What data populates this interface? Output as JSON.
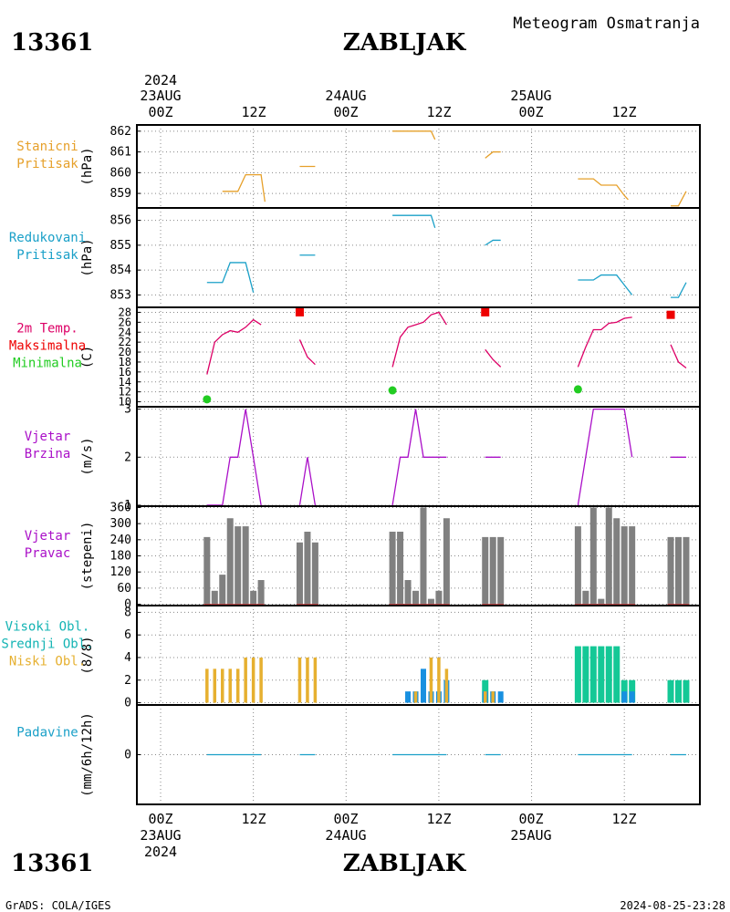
{
  "header": {
    "station_id": "13361",
    "station_name": "ZABLJAK",
    "subtitle": "Meteogram Osmatranja"
  },
  "footer": {
    "credit": "GrADS: COLA/IGES",
    "timestamp": "2024-08-25-23:28"
  },
  "axis": {
    "top_year": "2024",
    "time_ticks": [
      "00Z",
      "12Z",
      "00Z",
      "12Z",
      "00Z",
      "12Z"
    ],
    "date_ticks": [
      "23AUG",
      "24AUG",
      "25AUG"
    ],
    "bottom_year": "2024"
  },
  "colors": {
    "station_pressure": "#e6a02a",
    "reduced_pressure": "#1aa0c8",
    "tmax": "#dd0066",
    "tmax_marker": "#ee0000",
    "tmin_marker": "#22cc22",
    "wind_speed": "#aa10c8",
    "wind_dir_bar": "#808080",
    "wind_dir_base": "#cc3333",
    "cloud_high": "#14c896",
    "cloud_mid": "#1890e0",
    "cloud_low": "#e6b030",
    "precip": "#1aa0c8",
    "label_teal": "#14b4b4"
  },
  "chart_data": [
    {
      "type": "line",
      "panel": "station_pressure",
      "label_lines": [
        "Stanicni",
        "Pritisak"
      ],
      "ylabel": "(hPa)",
      "yticks": [
        862,
        861,
        860,
        859
      ],
      "ylim": [
        858.3,
        862.3
      ],
      "x_unit": "hours since 2024-08-23 00Z",
      "segments": [
        [
          [
            8,
            859.1
          ],
          [
            10,
            859.1
          ],
          [
            11,
            859.9
          ],
          [
            12,
            859.9
          ],
          [
            13,
            859.9
          ],
          [
            13.5,
            858.6
          ]
        ],
        [
          [
            18,
            860.3
          ],
          [
            20,
            860.3
          ]
        ],
        [
          [
            30,
            862
          ],
          [
            34,
            862
          ],
          [
            35,
            862
          ],
          [
            35.5,
            861.6
          ]
        ],
        [
          [
            42,
            860.7
          ],
          [
            43,
            861
          ],
          [
            44,
            861
          ]
        ],
        [
          [
            54,
            859.7
          ],
          [
            56,
            859.7
          ],
          [
            57,
            859.4
          ],
          [
            59,
            859.4
          ],
          [
            60,
            858.9
          ],
          [
            60.5,
            858.7
          ]
        ],
        [
          [
            66,
            858.4
          ],
          [
            67,
            858.4
          ],
          [
            68,
            859.1
          ]
        ]
      ]
    },
    {
      "type": "line",
      "panel": "reduced_pressure",
      "label_lines": [
        "Redukovani",
        "Pritisak"
      ],
      "ylabel": "(hPa)",
      "yticks": [
        856,
        855,
        854,
        853
      ],
      "ylim": [
        852.5,
        856.5
      ],
      "segments": [
        [
          [
            6,
            853.5
          ],
          [
            8,
            853.5
          ],
          [
            9,
            854.3
          ],
          [
            10,
            854.3
          ],
          [
            11,
            854.3
          ],
          [
            12,
            853.1
          ]
        ],
        [
          [
            18,
            854.6
          ],
          [
            20,
            854.6
          ]
        ],
        [
          [
            30,
            856.2
          ],
          [
            34,
            856.2
          ],
          [
            35,
            856.2
          ],
          [
            35.5,
            855.7
          ]
        ],
        [
          [
            42,
            855
          ],
          [
            43,
            855.2
          ],
          [
            44,
            855.2
          ]
        ],
        [
          [
            54,
            853.6
          ],
          [
            56,
            853.6
          ],
          [
            57,
            853.8
          ],
          [
            59,
            853.8
          ],
          [
            60,
            853.4
          ],
          [
            61,
            853
          ]
        ],
        [
          [
            66,
            852.9
          ],
          [
            67,
            852.9
          ],
          [
            68,
            853.5
          ]
        ]
      ]
    },
    {
      "type": "line",
      "panel": "temperature",
      "label_lines": [
        "2m Temp.",
        "Maksimalna",
        "Minimalna"
      ],
      "ylabel": "(C)",
      "yticks": [
        28,
        26,
        24,
        22,
        20,
        18,
        16,
        14,
        12,
        10
      ],
      "ylim": [
        9,
        29
      ],
      "segments": [
        [
          [
            6,
            15.5
          ],
          [
            7,
            22
          ],
          [
            8,
            23.5
          ],
          [
            9,
            24.3
          ],
          [
            10,
            24
          ],
          [
            11,
            25
          ],
          [
            12,
            26.5
          ],
          [
            13,
            25.5
          ]
        ],
        [
          [
            18,
            22.5
          ],
          [
            19,
            19
          ],
          [
            20,
            17.5
          ]
        ],
        [
          [
            30,
            17
          ],
          [
            31,
            23
          ],
          [
            32,
            25
          ],
          [
            33,
            25.5
          ],
          [
            34,
            26
          ],
          [
            35,
            27.5
          ],
          [
            36,
            28
          ],
          [
            37,
            25.5
          ]
        ],
        [
          [
            42,
            20.5
          ],
          [
            43,
            18.5
          ],
          [
            44,
            17
          ]
        ],
        [
          [
            54,
            17
          ],
          [
            55,
            21
          ],
          [
            56,
            24.5
          ],
          [
            57,
            24.5
          ],
          [
            58,
            25.8
          ],
          [
            59,
            26
          ],
          [
            60,
            26.8
          ],
          [
            61,
            27
          ]
        ],
        [
          [
            66,
            21.5
          ],
          [
            67,
            18
          ],
          [
            68,
            16.8
          ]
        ]
      ],
      "max_points": [
        [
          18,
          28
        ],
        [
          42,
          28
        ],
        [
          66,
          27.5
        ]
      ],
      "min_points": [
        [
          6,
          10.5
        ],
        [
          30,
          12.3
        ],
        [
          54,
          12.5
        ]
      ]
    },
    {
      "type": "line",
      "panel": "wind_speed",
      "label_lines": [
        "Vjetar",
        "Brzina"
      ],
      "ylabel": "(m/s)",
      "yticks": [
        3,
        2,
        1
      ],
      "ylim": [
        0.98,
        3.05
      ],
      "segments": [
        [
          [
            6,
            1
          ],
          [
            7,
            1
          ],
          [
            8,
            1
          ],
          [
            9,
            2
          ],
          [
            10,
            2
          ],
          [
            11,
            3
          ],
          [
            12,
            2
          ],
          [
            13,
            1
          ]
        ],
        [
          [
            18,
            1
          ],
          [
            19,
            2
          ],
          [
            20,
            1
          ]
        ],
        [
          [
            30,
            1
          ],
          [
            31,
            2
          ],
          [
            32,
            2
          ],
          [
            33,
            3
          ],
          [
            34,
            2
          ],
          [
            35,
            2
          ],
          [
            36,
            2
          ],
          [
            37,
            2
          ]
        ],
        [
          [
            42,
            2
          ],
          [
            43,
            2
          ],
          [
            44,
            2
          ]
        ],
        [
          [
            54,
            1
          ],
          [
            55,
            2
          ],
          [
            56,
            3
          ],
          [
            57,
            3
          ],
          [
            58,
            3
          ],
          [
            59,
            3
          ],
          [
            60,
            3
          ],
          [
            61,
            2
          ]
        ],
        [
          [
            66,
            2
          ],
          [
            67,
            2
          ],
          [
            68,
            2
          ]
        ]
      ]
    },
    {
      "type": "bar",
      "panel": "wind_direction",
      "label_lines": [
        "Vjetar",
        "Pravac"
      ],
      "ylabel": "(stepeni)",
      "yticks": [
        360,
        300,
        240,
        180,
        120,
        60,
        0
      ],
      "ylim": [
        -5,
        365
      ],
      "bars": [
        [
          6,
          250
        ],
        [
          7,
          50
        ],
        [
          8,
          110
        ],
        [
          9,
          320
        ],
        [
          10,
          290
        ],
        [
          11,
          290
        ],
        [
          12,
          50
        ],
        [
          13,
          90
        ],
        [
          18,
          230
        ],
        [
          19,
          270
        ],
        [
          20,
          230
        ],
        [
          30,
          270
        ],
        [
          31,
          270
        ],
        [
          32,
          90
        ],
        [
          33,
          50
        ],
        [
          34,
          360
        ],
        [
          35,
          20
        ],
        [
          36,
          50
        ],
        [
          37,
          320
        ],
        [
          42,
          250
        ],
        [
          43,
          250
        ],
        [
          44,
          250
        ],
        [
          54,
          290
        ],
        [
          55,
          50
        ],
        [
          56,
          360
        ],
        [
          57,
          20
        ],
        [
          58,
          360
        ],
        [
          59,
          320
        ],
        [
          60,
          290
        ],
        [
          61,
          290
        ],
        [
          66,
          250
        ],
        [
          67,
          250
        ],
        [
          68,
          250
        ]
      ]
    },
    {
      "type": "bar",
      "panel": "cloud_cover",
      "label_lines": [
        "Visoki Obl.",
        "Srednji Obl.",
        "Niski Obl."
      ],
      "ylabel": "(8/8)",
      "yticks": [
        8,
        6,
        4,
        2,
        0
      ],
      "ylim": [
        -0.2,
        8.6
      ],
      "series": [
        {
          "name": "Visoki Obl.",
          "bars": [
            [
              42,
              2
            ],
            [
              54,
              5
            ],
            [
              55,
              5
            ],
            [
              56,
              5
            ],
            [
              57,
              5
            ],
            [
              58,
              5
            ],
            [
              59,
              5
            ],
            [
              60,
              2
            ],
            [
              61,
              2
            ],
            [
              66,
              2
            ],
            [
              67,
              2
            ],
            [
              68,
              2
            ]
          ]
        },
        {
          "name": "Srednji Obl.",
          "bars": [
            [
              32,
              1
            ],
            [
              33,
              1
            ],
            [
              34,
              3
            ],
            [
              35,
              1
            ],
            [
              36,
              1
            ],
            [
              37,
              2
            ],
            [
              42,
              1
            ],
            [
              43,
              1
            ],
            [
              44,
              1
            ],
            [
              60,
              1
            ],
            [
              61,
              1
            ]
          ]
        },
        {
          "name": "Niski Obl.",
          "bars": [
            [
              6,
              3
            ],
            [
              7,
              3
            ],
            [
              8,
              3
            ],
            [
              9,
              3
            ],
            [
              10,
              3
            ],
            [
              11,
              4
            ],
            [
              12,
              4
            ],
            [
              13,
              4
            ],
            [
              18,
              4
            ],
            [
              19,
              4
            ],
            [
              20,
              4
            ],
            [
              33,
              1
            ],
            [
              35,
              4
            ],
            [
              36,
              4
            ],
            [
              37,
              3
            ],
            [
              42,
              1
            ],
            [
              43,
              1
            ]
          ]
        }
      ]
    },
    {
      "type": "line",
      "panel": "precipitation",
      "label_lines": [
        "Padavine"
      ],
      "ylabel": "(mm/6h/12h)",
      "yticks": [
        0
      ],
      "ylim": [
        -1,
        1
      ],
      "segments": [
        [
          [
            6,
            0
          ],
          [
            13,
            0
          ]
        ],
        [
          [
            18,
            0
          ],
          [
            20,
            0
          ]
        ],
        [
          [
            30,
            0
          ],
          [
            37,
            0
          ]
        ],
        [
          [
            42,
            0
          ],
          [
            44,
            0
          ]
        ],
        [
          [
            54,
            0
          ],
          [
            61,
            0
          ]
        ],
        [
          [
            66,
            0
          ],
          [
            68,
            0
          ]
        ]
      ]
    }
  ]
}
